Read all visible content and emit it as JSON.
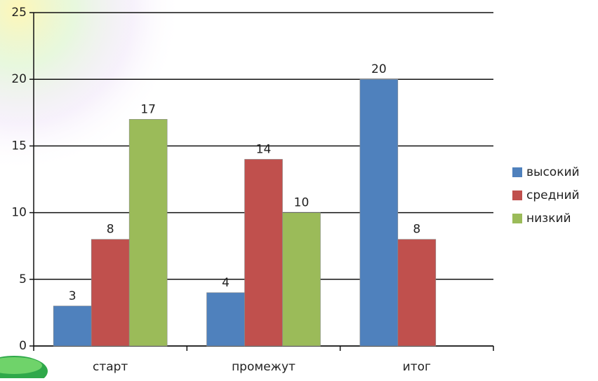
{
  "chart_data": {
    "type": "bar",
    "categories": [
      "старт",
      "промежут",
      "итог"
    ],
    "series": [
      {
        "name": "высокий",
        "color": "#4f81bd",
        "values": [
          3,
          4,
          20
        ]
      },
      {
        "name": "средний",
        "color": "#c0504d",
        "values": [
          8,
          14,
          8
        ]
      },
      {
        "name": "низкий",
        "color": "#9bbb59",
        "values": [
          17,
          10,
          null
        ]
      }
    ],
    "ylim": [
      0,
      25
    ],
    "yticks": [
      0,
      5,
      10,
      15,
      20,
      25
    ],
    "grid": true,
    "legend": "right"
  }
}
